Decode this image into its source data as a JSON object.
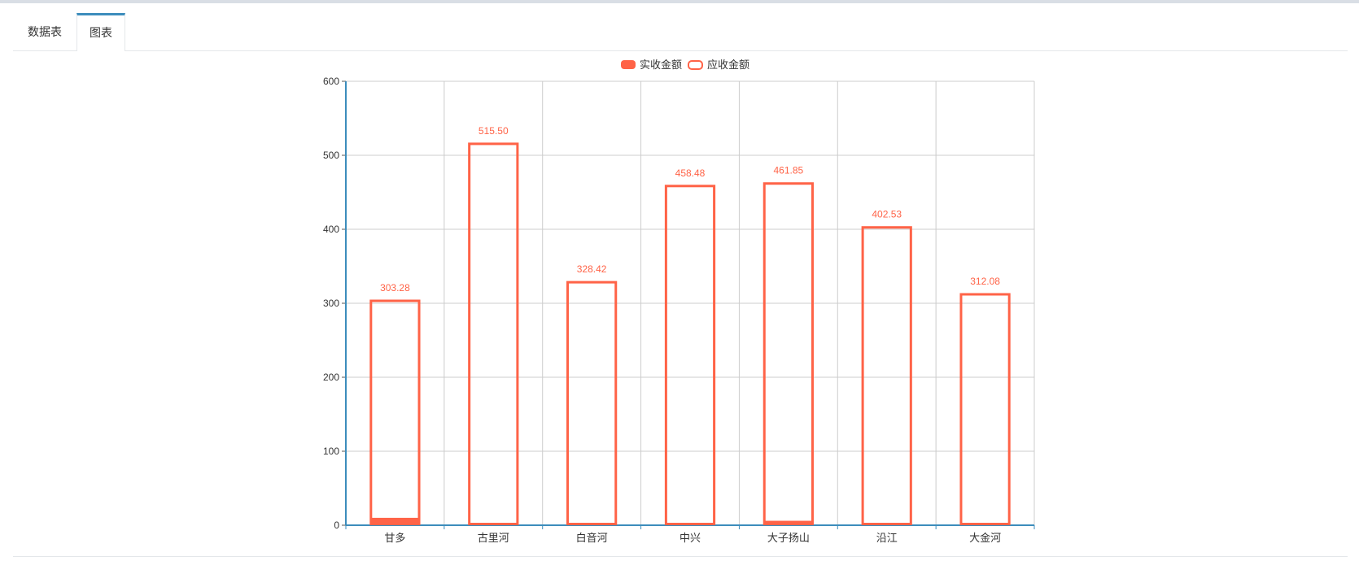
{
  "tabs": [
    {
      "label": "数据表",
      "active": false
    },
    {
      "label": "图表",
      "active": true
    }
  ],
  "chart_data": {
    "type": "bar",
    "categories": [
      "甘多",
      "古里河",
      "白音河",
      "中兴",
      "大子扬山",
      "沿江",
      "大金河"
    ],
    "series": [
      {
        "name": "实收金额",
        "values": [
          10,
          3,
          3,
          3,
          6,
          2,
          3
        ],
        "color": "#ff6347",
        "style": "filled"
      },
      {
        "name": "应收金额",
        "values": [
          303.28,
          515.5,
          328.42,
          458.48,
          461.85,
          402.53,
          312.08
        ],
        "labels": [
          "303.28",
          "515.50",
          "328.42",
          "458.48",
          "461.85",
          "402.53",
          "312.08"
        ],
        "color": "#ff6347",
        "style": "outline"
      }
    ],
    "ylim": [
      0,
      600
    ],
    "yticks": [
      "0",
      "100",
      "200",
      "300",
      "400",
      "500",
      "600"
    ],
    "grid": true,
    "legend": "top-center",
    "colors": {
      "accent": "#ff6347",
      "axis": "#3c8dbc",
      "grid": "#cccccc"
    }
  }
}
